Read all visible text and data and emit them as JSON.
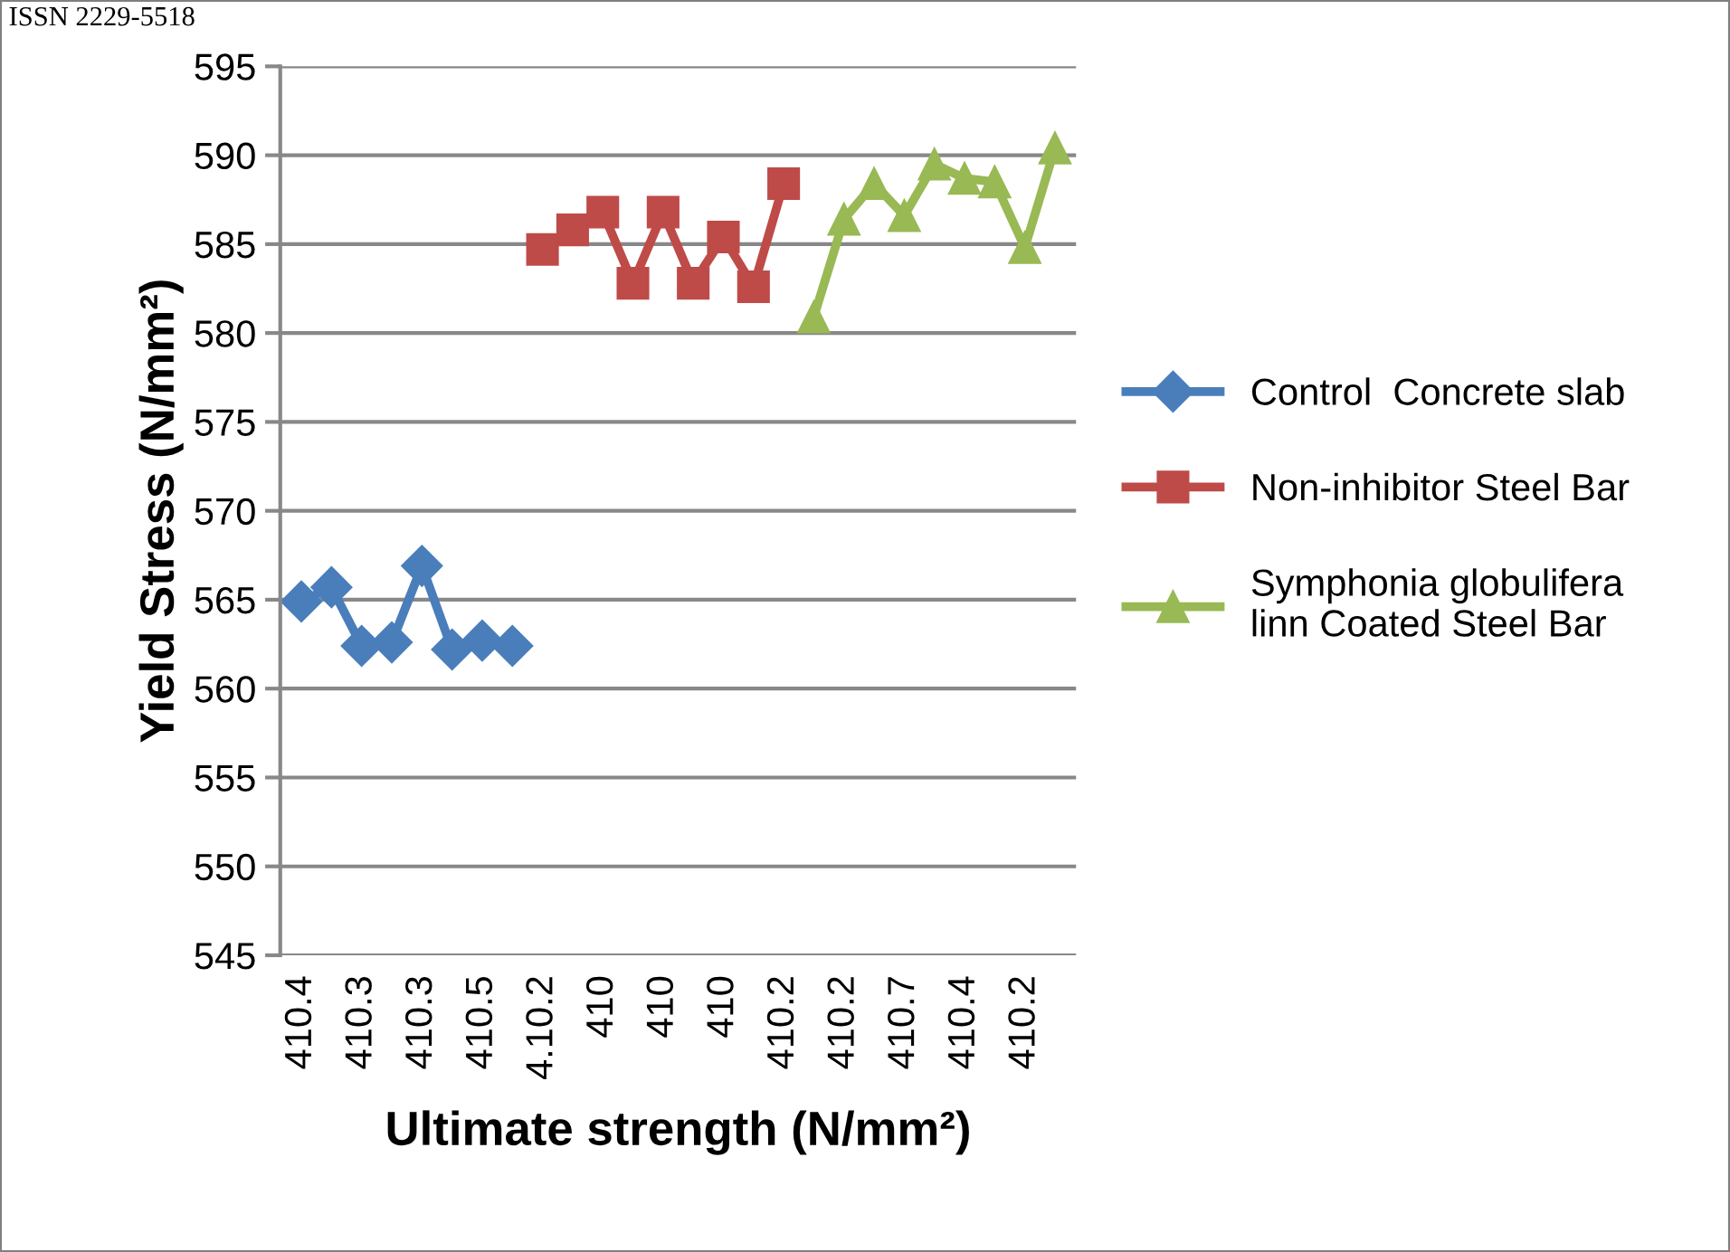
{
  "chart_data": {
    "type": "line",
    "xlabel": "Ultimate strength (N/mm²)",
    "ylabel": "Yield Stress (N/mm²)",
    "annotations": [
      "ISSN 2229-5518"
    ],
    "categories": [
      "410.4",
      null,
      "410.3",
      null,
      "410.3",
      null,
      "410.5",
      null,
      "4.10.2",
      null,
      "410",
      null,
      "410",
      null,
      "410",
      null,
      "410.2",
      null,
      "410.2",
      null,
      "410.7",
      null,
      "410.4",
      null,
      "410.2",
      null
    ],
    "series": [
      {
        "name": "Control  Concrete slab",
        "color": "#4a7ebb",
        "marker": "diamond",
        "values": [
          564.9,
          565.7,
          562.4,
          562.6,
          566.9,
          562.2,
          562.7,
          562.4,
          null,
          null,
          null,
          null,
          null,
          null,
          null,
          null,
          null,
          null,
          null,
          null,
          null,
          null,
          null,
          null,
          null,
          null
        ]
      },
      {
        "name": "Non-inhibitor Steel Bar",
        "color": "#be4b48",
        "marker": "square",
        "values": [
          null,
          null,
          null,
          null,
          null,
          null,
          null,
          null,
          584.7,
          585.8,
          586.8,
          582.8,
          586.8,
          582.8,
          585.4,
          582.6,
          588.4,
          null,
          null,
          null,
          null,
          null,
          null,
          null,
          null,
          null
        ]
      },
      {
        "name": "Symphonia globulifera\nlinn Coated Steel Bar",
        "color": "#98b954",
        "marker": "triangle",
        "values": [
          null,
          null,
          null,
          null,
          null,
          null,
          null,
          null,
          null,
          null,
          null,
          null,
          null,
          null,
          null,
          null,
          null,
          580.9,
          586.4,
          588.4,
          586.6,
          589.5,
          588.7,
          588.5,
          584.8,
          590.4
        ]
      }
    ],
    "ylim": [
      545,
      595
    ],
    "yticks": [
      545,
      550,
      555,
      560,
      565,
      570,
      575,
      580,
      585,
      590,
      595
    ],
    "grid": "y",
    "legend": "right"
  }
}
